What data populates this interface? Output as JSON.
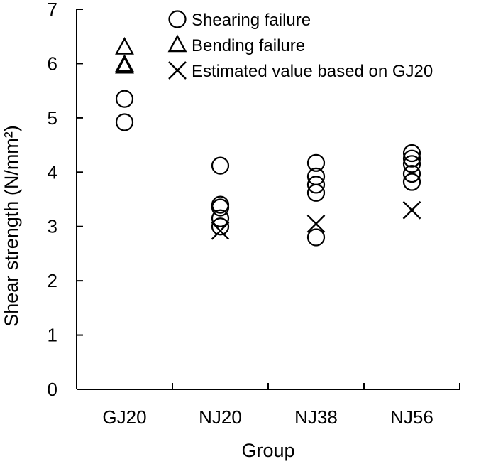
{
  "chart_data": {
    "type": "scatter",
    "title": "",
    "xlabel": "Group",
    "ylabel": "Shear strength (N/mm²)",
    "ylim": [
      0,
      7
    ],
    "yticks": [
      0,
      1,
      2,
      3,
      4,
      5,
      6,
      7
    ],
    "categories": [
      "GJ20",
      "NJ20",
      "NJ38",
      "NJ56"
    ],
    "grid": false,
    "legend_position": "top-right",
    "series": [
      {
        "name": "Shearing failure",
        "marker": "circle",
        "points": [
          {
            "category": "GJ20",
            "y": 5.35
          },
          {
            "category": "GJ20",
            "y": 4.92
          },
          {
            "category": "NJ20",
            "y": 4.12
          },
          {
            "category": "NJ20",
            "y": 3.4
          },
          {
            "category": "NJ20",
            "y": 3.35
          },
          {
            "category": "NJ20",
            "y": 3.15
          },
          {
            "category": "NJ20",
            "y": 3.0
          },
          {
            "category": "NJ38",
            "y": 4.17
          },
          {
            "category": "NJ38",
            "y": 3.92
          },
          {
            "category": "NJ38",
            "y": 3.77
          },
          {
            "category": "NJ38",
            "y": 3.62
          },
          {
            "category": "NJ38",
            "y": 2.8
          },
          {
            "category": "NJ56",
            "y": 4.35
          },
          {
            "category": "NJ56",
            "y": 4.25
          },
          {
            "category": "NJ56",
            "y": 4.15
          },
          {
            "category": "NJ56",
            "y": 3.97
          },
          {
            "category": "NJ56",
            "y": 3.82
          }
        ]
      },
      {
        "name": "Bending failure",
        "marker": "triangle",
        "points": [
          {
            "category": "GJ20",
            "y": 6.3
          },
          {
            "category": "GJ20",
            "y": 5.98
          },
          {
            "category": "GJ20",
            "y": 5.95
          }
        ]
      },
      {
        "name": "Estimated value based on GJ20",
        "marker": "cross",
        "points": [
          {
            "category": "NJ20",
            "y": 2.92
          },
          {
            "category": "NJ38",
            "y": 3.05
          },
          {
            "category": "NJ56",
            "y": 3.3
          }
        ]
      }
    ]
  }
}
